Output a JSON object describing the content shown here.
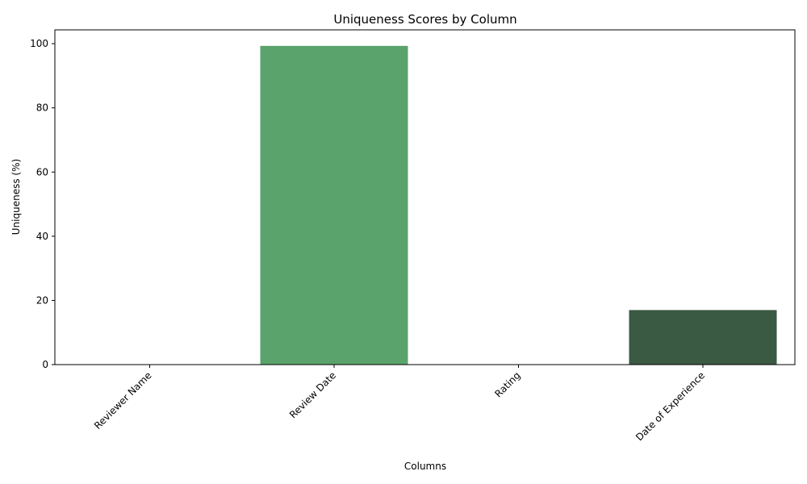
{
  "chart_data": {
    "type": "bar",
    "title": "Uniqueness Scores by Column",
    "xlabel": "Columns",
    "ylabel": "Uniqueness (%)",
    "categories": [
      "Reviewer Name",
      "Review Date",
      "Rating",
      "Date of Experience"
    ],
    "values": [
      0,
      99.3,
      0,
      17.0
    ],
    "colors": [
      "#a8d5ac",
      "#5ba36c",
      "#4a8558",
      "#3b5a43"
    ],
    "ylim": [
      0,
      104.3
    ],
    "yticks": [
      0,
      20,
      40,
      60,
      80,
      100
    ],
    "grid": false,
    "legend": "none"
  }
}
